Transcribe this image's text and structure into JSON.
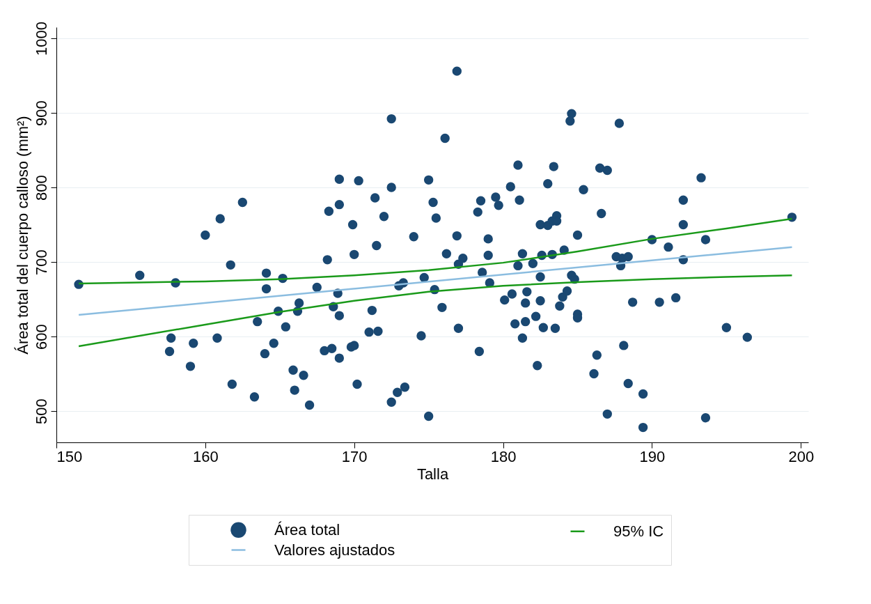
{
  "chart_data": {
    "type": "scatter",
    "xlabel": "Talla",
    "ylabel": "Área total del cuerpo calloso (mm²)",
    "xlim": [
      150,
      200.5
    ],
    "ylim": [
      458,
      1015
    ],
    "xticks": [
      150,
      160,
      170,
      180,
      190,
      200
    ],
    "yticks": [
      500,
      600,
      700,
      800,
      900,
      1000
    ],
    "grid": "y",
    "legend": "bottom",
    "marker": "circle",
    "series": [
      {
        "name": "Área total",
        "type": "scatter",
        "color": "#1a4872",
        "x": [
          151.5,
          155.6,
          157.6,
          157.7,
          158,
          159,
          159.2,
          160,
          160.8,
          161,
          161.7,
          161.8,
          162.5,
          163.3,
          163.5,
          164,
          164.1,
          164.1,
          164.6,
          164.9,
          165.2,
          165.4,
          165.9,
          166,
          166.2,
          166.3,
          166.6,
          167,
          167.5,
          168,
          168.2,
          168.3,
          168.5,
          168.6,
          168.9,
          169,
          169,
          169,
          169,
          169.8,
          169.9,
          170,
          170,
          170.2,
          170.3,
          171,
          171.2,
          171.4,
          171.5,
          171.6,
          172,
          172.5,
          172.5,
          172.5,
          172.9,
          173,
          173.3,
          173.4,
          174,
          174.5,
          174.7,
          175,
          175,
          175.3,
          175.5,
          175.4,
          175.9,
          176.1,
          176.2,
          176.9,
          176.9,
          177,
          177,
          177.3,
          178.3,
          178.5,
          178.4,
          178.6,
          179,
          179,
          179.1,
          179.5,
          179.7,
          180.1,
          180.5,
          180.6,
          180.8,
          181,
          181.1,
          181,
          181.3,
          181.3,
          181.5,
          181.5,
          181.6,
          182,
          182.2,
          182.3,
          182.5,
          182.6,
          182.5,
          182.5,
          182.7,
          183,
          183,
          183.3,
          183.3,
          183.4,
          183.5,
          183.6,
          183.6,
          183.8,
          184,
          184.1,
          184.3,
          184.6,
          184.5,
          184.6,
          184.8,
          185,
          185,
          185,
          185.4,
          186.1,
          186.3,
          186.5,
          186.6,
          187,
          187,
          187.6,
          187.9,
          187.8,
          188.1,
          188,
          188.4,
          188.4,
          188.7,
          189.4,
          189.4,
          190,
          190.5,
          191.1,
          191.6,
          192.1,
          192.1,
          192.1,
          193.3,
          193.6,
          193.6,
          195,
          196.4,
          199.4
        ],
        "values": [
          670,
          682,
          580,
          598,
          672,
          560,
          591,
          736,
          598,
          758,
          696,
          536,
          780,
          519,
          620,
          577,
          685,
          664,
          591,
          634,
          678,
          613,
          555,
          528,
          634,
          645,
          548,
          508,
          666,
          581,
          703,
          768,
          584,
          640,
          658,
          811,
          777,
          571,
          628,
          586,
          750,
          710,
          588,
          536,
          809,
          606,
          635,
          786,
          722,
          607,
          761,
          892,
          800,
          512,
          525,
          668,
          672,
          532,
          734,
          601,
          679,
          810,
          493,
          780,
          759,
          663,
          639,
          866,
          711,
          735,
          956,
          697,
          611,
          705,
          767,
          782,
          580,
          686,
          731,
          709,
          672,
          787,
          776,
          649,
          801,
          657,
          617,
          830,
          783,
          695,
          711,
          598,
          620,
          645,
          660,
          698,
          627,
          561,
          750,
          709,
          680,
          648,
          612,
          805,
          749,
          755,
          710,
          828,
          611,
          762,
          755,
          641,
          653,
          716,
          661,
          899,
          889,
          682,
          677,
          736,
          630,
          625,
          797,
          550,
          575,
          826,
          765,
          823,
          496,
          707,
          695,
          886,
          588,
          705,
          707,
          537,
          646,
          523,
          478,
          730,
          646,
          720,
          652,
          703,
          750,
          783,
          813,
          730,
          491,
          612,
          599,
          760
        ]
      },
      {
        "name": "Valores ajustados",
        "type": "line",
        "marker": "none",
        "color": "#8bbde0",
        "x": [
          151.5,
          199.4
        ],
        "values": [
          629,
          720
        ]
      },
      {
        "name": "95% IC",
        "type": "line",
        "marker": "none",
        "color": "#1a9a1a",
        "x": [
          151.5,
          160,
          165,
          170,
          175,
          180,
          185,
          190,
          195,
          199.4
        ],
        "values": [
          671,
          674,
          677,
          682,
          689,
          699,
          714,
          731,
          745,
          758
        ]
      },
      {
        "type": "line",
        "marker": "none",
        "color": "#1a9a1a",
        "x": [
          151.5,
          160,
          165,
          170,
          175,
          180,
          185,
          190,
          195,
          199.4
        ],
        "values": [
          587,
          616,
          633,
          648,
          660,
          668,
          673,
          677,
          680,
          682
        ]
      }
    ]
  }
}
